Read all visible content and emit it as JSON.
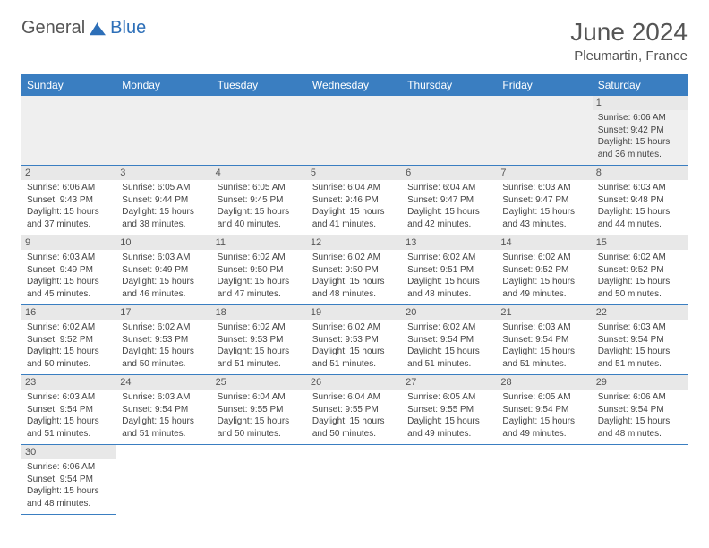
{
  "logo": {
    "word1": "General",
    "word2": "Blue"
  },
  "title": "June 2024",
  "location": "Pleumartin, France",
  "days": [
    "Sunday",
    "Monday",
    "Tuesday",
    "Wednesday",
    "Thursday",
    "Friday",
    "Saturday"
  ],
  "colors": {
    "header_bg": "#3a7ec1",
    "header_fg": "#ffffff",
    "daynum_bg": "#e8e8e8",
    "blank_row_bg": "#efefef",
    "logo_blue": "#2d6fb8",
    "text": "#444444",
    "border": "#3a7ec1"
  },
  "weeks": [
    [
      null,
      null,
      null,
      null,
      null,
      null,
      {
        "n": "1",
        "sr": "6:06 AM",
        "ss": "9:42 PM",
        "dl": "15 hours and 36 minutes."
      }
    ],
    [
      {
        "n": "2",
        "sr": "6:06 AM",
        "ss": "9:43 PM",
        "dl": "15 hours and 37 minutes."
      },
      {
        "n": "3",
        "sr": "6:05 AM",
        "ss": "9:44 PM",
        "dl": "15 hours and 38 minutes."
      },
      {
        "n": "4",
        "sr": "6:05 AM",
        "ss": "9:45 PM",
        "dl": "15 hours and 40 minutes."
      },
      {
        "n": "5",
        "sr": "6:04 AM",
        "ss": "9:46 PM",
        "dl": "15 hours and 41 minutes."
      },
      {
        "n": "6",
        "sr": "6:04 AM",
        "ss": "9:47 PM",
        "dl": "15 hours and 42 minutes."
      },
      {
        "n": "7",
        "sr": "6:03 AM",
        "ss": "9:47 PM",
        "dl": "15 hours and 43 minutes."
      },
      {
        "n": "8",
        "sr": "6:03 AM",
        "ss": "9:48 PM",
        "dl": "15 hours and 44 minutes."
      }
    ],
    [
      {
        "n": "9",
        "sr": "6:03 AM",
        "ss": "9:49 PM",
        "dl": "15 hours and 45 minutes."
      },
      {
        "n": "10",
        "sr": "6:03 AM",
        "ss": "9:49 PM",
        "dl": "15 hours and 46 minutes."
      },
      {
        "n": "11",
        "sr": "6:02 AM",
        "ss": "9:50 PM",
        "dl": "15 hours and 47 minutes."
      },
      {
        "n": "12",
        "sr": "6:02 AM",
        "ss": "9:50 PM",
        "dl": "15 hours and 48 minutes."
      },
      {
        "n": "13",
        "sr": "6:02 AM",
        "ss": "9:51 PM",
        "dl": "15 hours and 48 minutes."
      },
      {
        "n": "14",
        "sr": "6:02 AM",
        "ss": "9:52 PM",
        "dl": "15 hours and 49 minutes."
      },
      {
        "n": "15",
        "sr": "6:02 AM",
        "ss": "9:52 PM",
        "dl": "15 hours and 50 minutes."
      }
    ],
    [
      {
        "n": "16",
        "sr": "6:02 AM",
        "ss": "9:52 PM",
        "dl": "15 hours and 50 minutes."
      },
      {
        "n": "17",
        "sr": "6:02 AM",
        "ss": "9:53 PM",
        "dl": "15 hours and 50 minutes."
      },
      {
        "n": "18",
        "sr": "6:02 AM",
        "ss": "9:53 PM",
        "dl": "15 hours and 51 minutes."
      },
      {
        "n": "19",
        "sr": "6:02 AM",
        "ss": "9:53 PM",
        "dl": "15 hours and 51 minutes."
      },
      {
        "n": "20",
        "sr": "6:02 AM",
        "ss": "9:54 PM",
        "dl": "15 hours and 51 minutes."
      },
      {
        "n": "21",
        "sr": "6:03 AM",
        "ss": "9:54 PM",
        "dl": "15 hours and 51 minutes."
      },
      {
        "n": "22",
        "sr": "6:03 AM",
        "ss": "9:54 PM",
        "dl": "15 hours and 51 minutes."
      }
    ],
    [
      {
        "n": "23",
        "sr": "6:03 AM",
        "ss": "9:54 PM",
        "dl": "15 hours and 51 minutes."
      },
      {
        "n": "24",
        "sr": "6:03 AM",
        "ss": "9:54 PM",
        "dl": "15 hours and 51 minutes."
      },
      {
        "n": "25",
        "sr": "6:04 AM",
        "ss": "9:55 PM",
        "dl": "15 hours and 50 minutes."
      },
      {
        "n": "26",
        "sr": "6:04 AM",
        "ss": "9:55 PM",
        "dl": "15 hours and 50 minutes."
      },
      {
        "n": "27",
        "sr": "6:05 AM",
        "ss": "9:55 PM",
        "dl": "15 hours and 49 minutes."
      },
      {
        "n": "28",
        "sr": "6:05 AM",
        "ss": "9:54 PM",
        "dl": "15 hours and 49 minutes."
      },
      {
        "n": "29",
        "sr": "6:06 AM",
        "ss": "9:54 PM",
        "dl": "15 hours and 48 minutes."
      }
    ],
    [
      {
        "n": "30",
        "sr": "6:06 AM",
        "ss": "9:54 PM",
        "dl": "15 hours and 48 minutes."
      },
      null,
      null,
      null,
      null,
      null,
      null
    ]
  ],
  "labels": {
    "sunrise": "Sunrise:",
    "sunset": "Sunset:",
    "daylight": "Daylight:"
  }
}
